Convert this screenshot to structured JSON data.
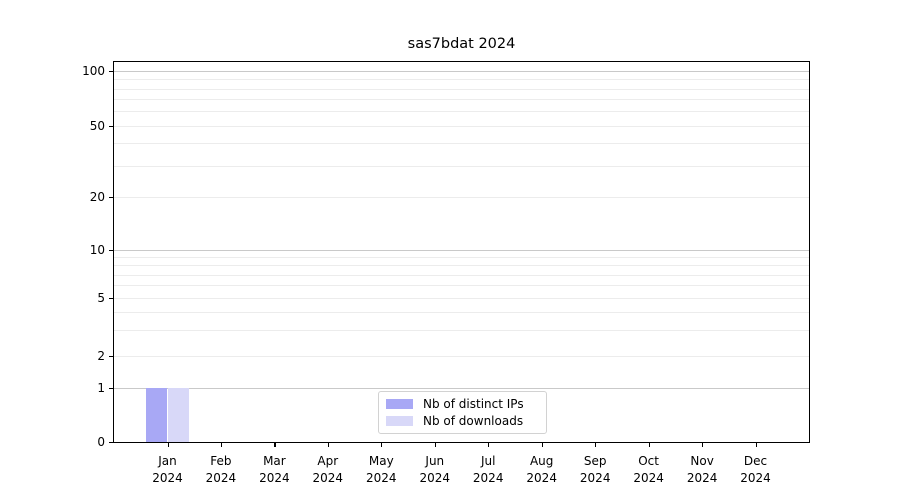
{
  "chart_data": {
    "type": "bar",
    "title": "sas7bdat 2024",
    "categories": [
      "Jan 2024",
      "Feb 2024",
      "Mar 2024",
      "Apr 2024",
      "May 2024",
      "Jun 2024",
      "Jul 2024",
      "Aug 2024",
      "Sep 2024",
      "Oct 2024",
      "Nov 2024",
      "Dec 2024"
    ],
    "series": [
      {
        "name": "Nb of distinct IPs",
        "color": "#a8a8f5",
        "values": [
          1,
          0,
          0,
          0,
          0,
          0,
          0,
          0,
          0,
          0,
          0,
          0
        ]
      },
      {
        "name": "Nb of downloads",
        "color": "#d8d8f8",
        "values": [
          1,
          0,
          0,
          0,
          0,
          0,
          0,
          0,
          0,
          0,
          0,
          0
        ]
      }
    ],
    "xlabel": "",
    "ylabel": "",
    "y_ticks": [
      0,
      1,
      2,
      5,
      10,
      20,
      50,
      100
    ],
    "layout": {
      "y_scale": "log-like above 1, linear 0-1",
      "y_tick_fractions": {
        "0": 1.0,
        "1": 0.8586,
        "2": 0.7723,
        "5": 0.6204,
        "10": 0.4948,
        "20": 0.356,
        "50": 0.1675,
        "100": 0.0236
      },
      "grid_major_values": [
        1,
        10,
        100
      ],
      "grid_minor_values": [
        2,
        3,
        4,
        5,
        6,
        7,
        8,
        9,
        20,
        30,
        40,
        50,
        60,
        70,
        80,
        90
      ],
      "x_range": [
        -1,
        12
      ],
      "bar_width_units": 0.4,
      "legend_position": "lower center inside",
      "colors": {
        "spine": "#000000",
        "grid_major": "#c9c9c9",
        "grid_minor": "#ececec",
        "text": "#000000",
        "legend_border": "#d2d2d2",
        "background": "#ffffff"
      }
    }
  }
}
